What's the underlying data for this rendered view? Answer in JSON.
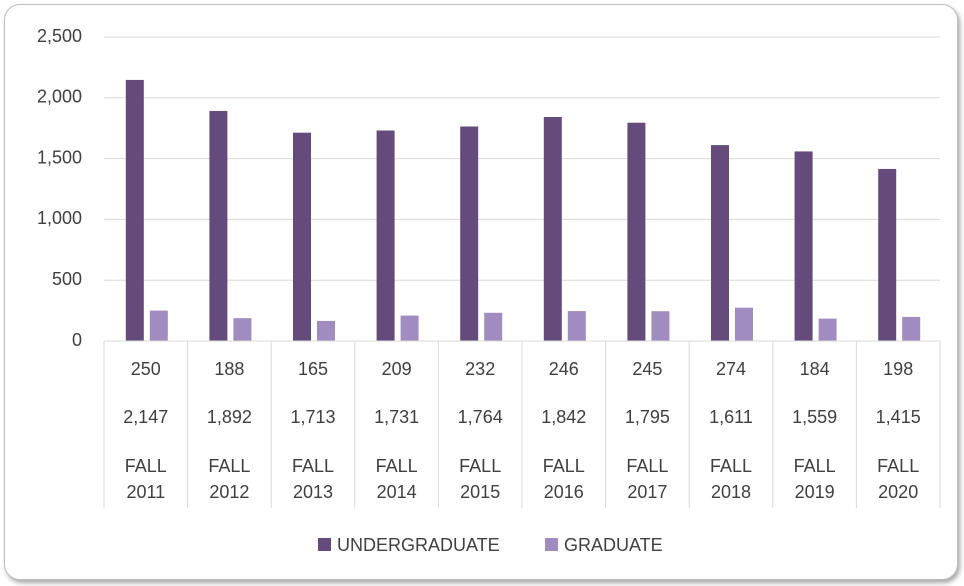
{
  "chart_data": {
    "type": "bar",
    "categories": [
      "FALL 2011",
      "FALL 2012",
      "FALL 2013",
      "FALL 2014",
      "FALL 2015",
      "FALL 2016",
      "FALL 2017",
      "FALL 2018",
      "FALL 2019",
      "FALL 2020"
    ],
    "series": [
      {
        "name": "UNDERGRADUATE",
        "color": "#644b7c",
        "values": [
          2147,
          1892,
          1713,
          1731,
          1764,
          1842,
          1795,
          1611,
          1559,
          1415
        ],
        "value_labels": [
          "2,147",
          "1,892",
          "1,713",
          "1,731",
          "1,764",
          "1,842",
          "1,795",
          "1,611",
          "1,559",
          "1,415"
        ]
      },
      {
        "name": "GRADUATE",
        "color": "#a08cbe",
        "values": [
          250,
          188,
          165,
          209,
          232,
          246,
          245,
          274,
          184,
          198
        ]
      }
    ],
    "ylim": [
      0,
      2500
    ],
    "yticks": [
      0,
      500,
      {
        "value": 1000,
        "label": "1,000"
      },
      {
        "value": 1500,
        "label": "1,500"
      },
      {
        "value": 2000,
        "label": "2,000"
      },
      {
        "value": 2500,
        "label": "2,500"
      }
    ],
    "grid": true,
    "legend": "bottom"
  }
}
